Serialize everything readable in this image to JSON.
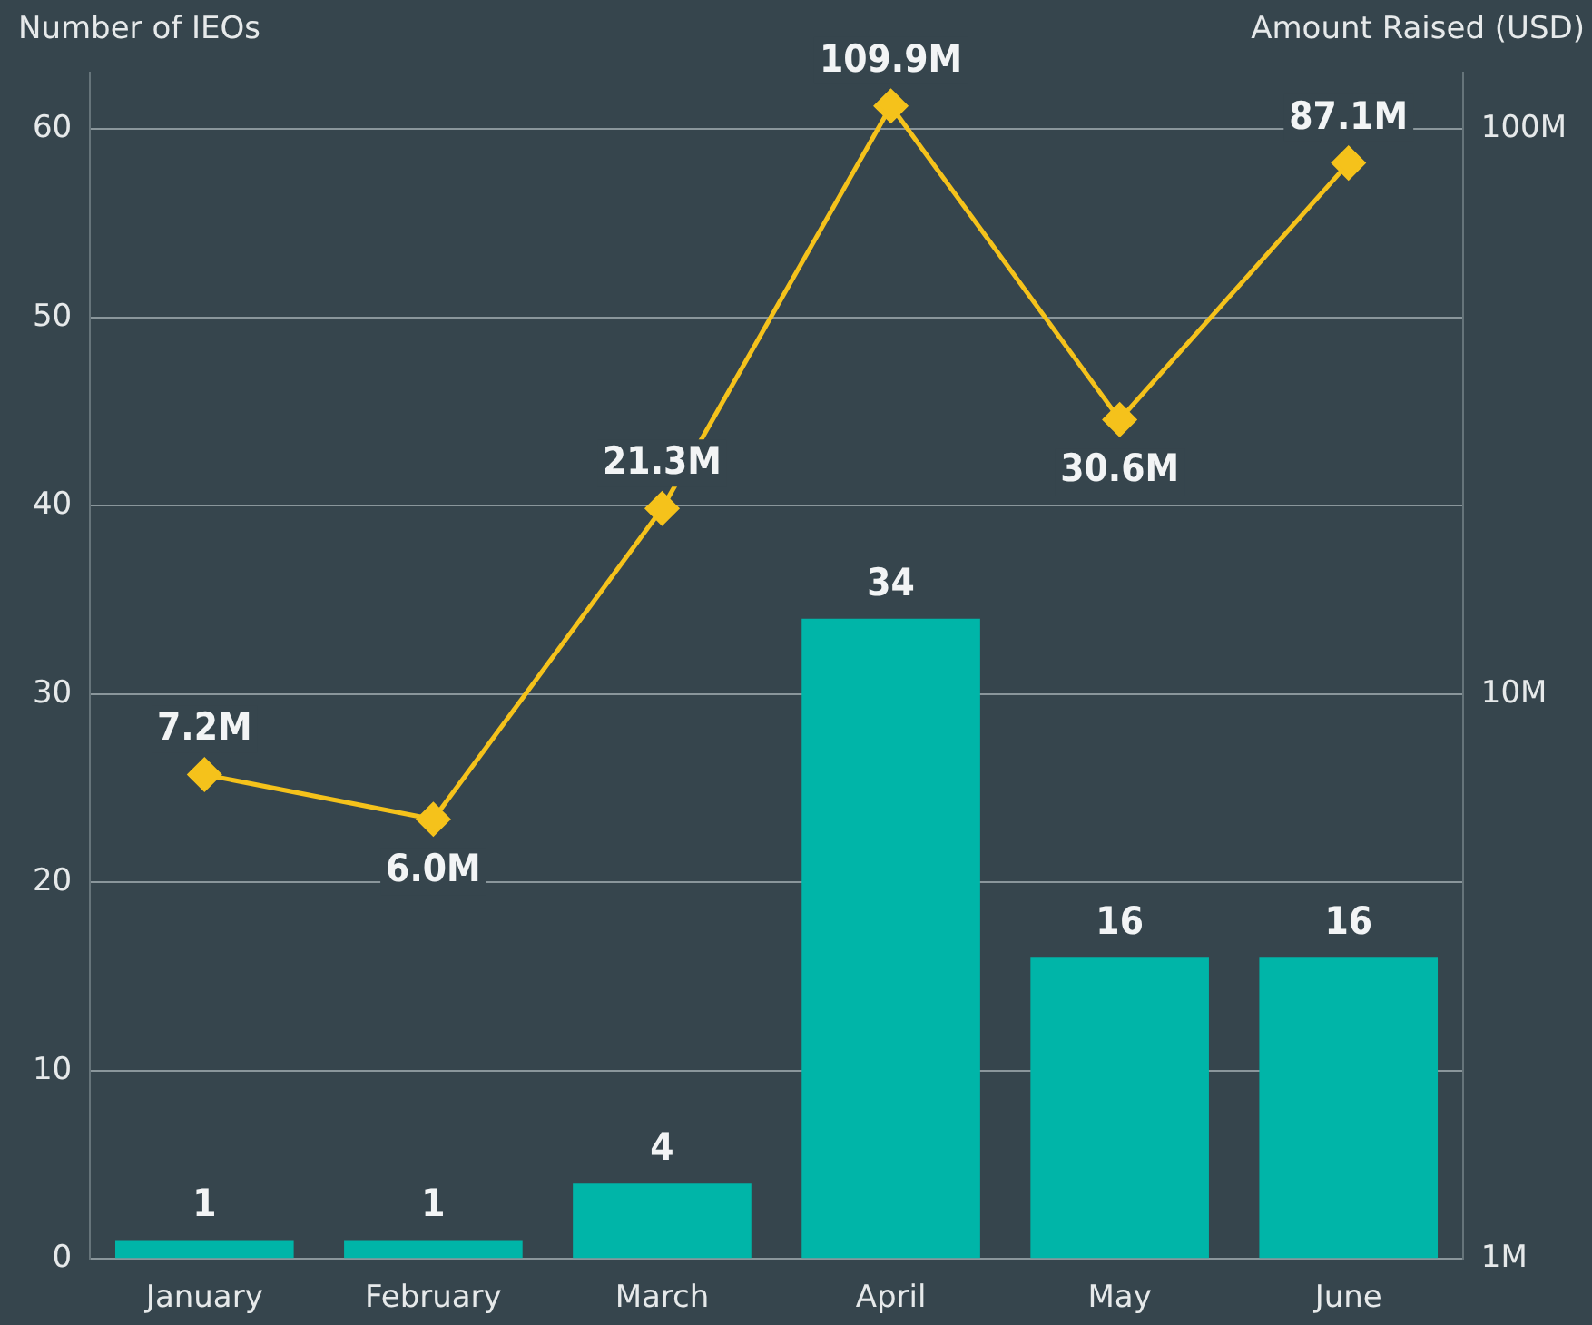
{
  "chart_data": {
    "type": "bar",
    "ylabel": "Number of IEOs",
    "y2label": "Amount Raised (USD)",
    "categories": [
      "January",
      "February",
      "March",
      "April",
      "May",
      "June"
    ],
    "series": [
      {
        "color": "#00b5a8",
        "values": [
          1,
          1,
          4,
          34,
          16,
          16
        ],
        "value_labels": [
          "1",
          "1",
          "4",
          "34",
          "16",
          "16"
        ]
      },
      {
        "type": "line",
        "axis": "y2",
        "color": "#f5c21b",
        "marker": "diamond",
        "values": [
          7200000,
          6000000,
          21300000,
          109900000,
          30600000,
          87100000
        ],
        "value_labels": [
          "7.2M",
          "6.0M",
          "21.3M",
          "109.9M",
          "30.6M",
          "87.1M"
        ]
      }
    ],
    "ylim": [
      0,
      63
    ],
    "yticks": [
      0,
      10,
      20,
      30,
      40,
      50,
      60
    ],
    "y2lim": [
      1000000,
      125900000
    ],
    "y2ticks": [
      {
        "value": 1000000,
        "label": "1M"
      },
      {
        "value": 10000000,
        "label": "10M"
      },
      {
        "value": 100000000,
        "label": "100M"
      }
    ],
    "log": "y2",
    "grid": "y",
    "legend": false
  }
}
